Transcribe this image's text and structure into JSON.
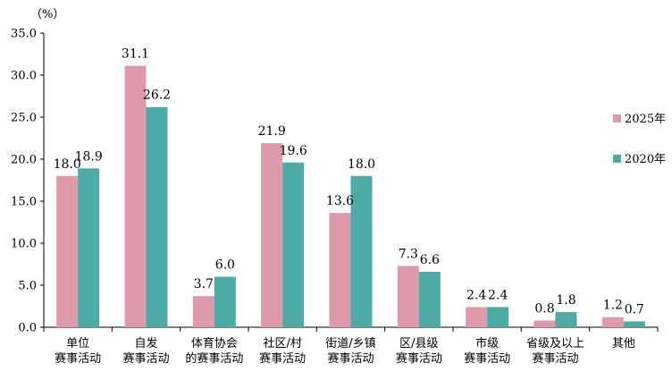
{
  "chart_data": {
    "type": "bar",
    "unit_label": "（%）",
    "categories": [
      [
        "单位",
        "赛事活动"
      ],
      [
        "自发",
        "赛事活动"
      ],
      [
        "体育协会",
        "的赛事活动"
      ],
      [
        "社区/村",
        "赛事活动"
      ],
      [
        "街道/乡镇",
        "赛事活动"
      ],
      [
        "区/县级",
        "赛事活动"
      ],
      [
        "市级",
        "赛事活动"
      ],
      [
        "省级及以上",
        "赛事活动"
      ],
      [
        "其他"
      ]
    ],
    "series": [
      {
        "name": "2025年",
        "color": "#DE9AAA",
        "values": [
          18.0,
          31.1,
          3.7,
          21.9,
          13.6,
          7.3,
          2.4,
          0.8,
          1.2
        ]
      },
      {
        "name": "2020年",
        "color": "#4DAAA5",
        "values": [
          18.9,
          26.2,
          6.0,
          19.6,
          18.0,
          6.6,
          2.4,
          1.8,
          0.7
        ]
      }
    ],
    "ylim": [
      0,
      35
    ],
    "yticks": [
      "0.0",
      "5.0",
      "10.0",
      "15.0",
      "20.0",
      "25.0",
      "30.0",
      "35.0"
    ],
    "legend_position": "right",
    "grid": false
  }
}
